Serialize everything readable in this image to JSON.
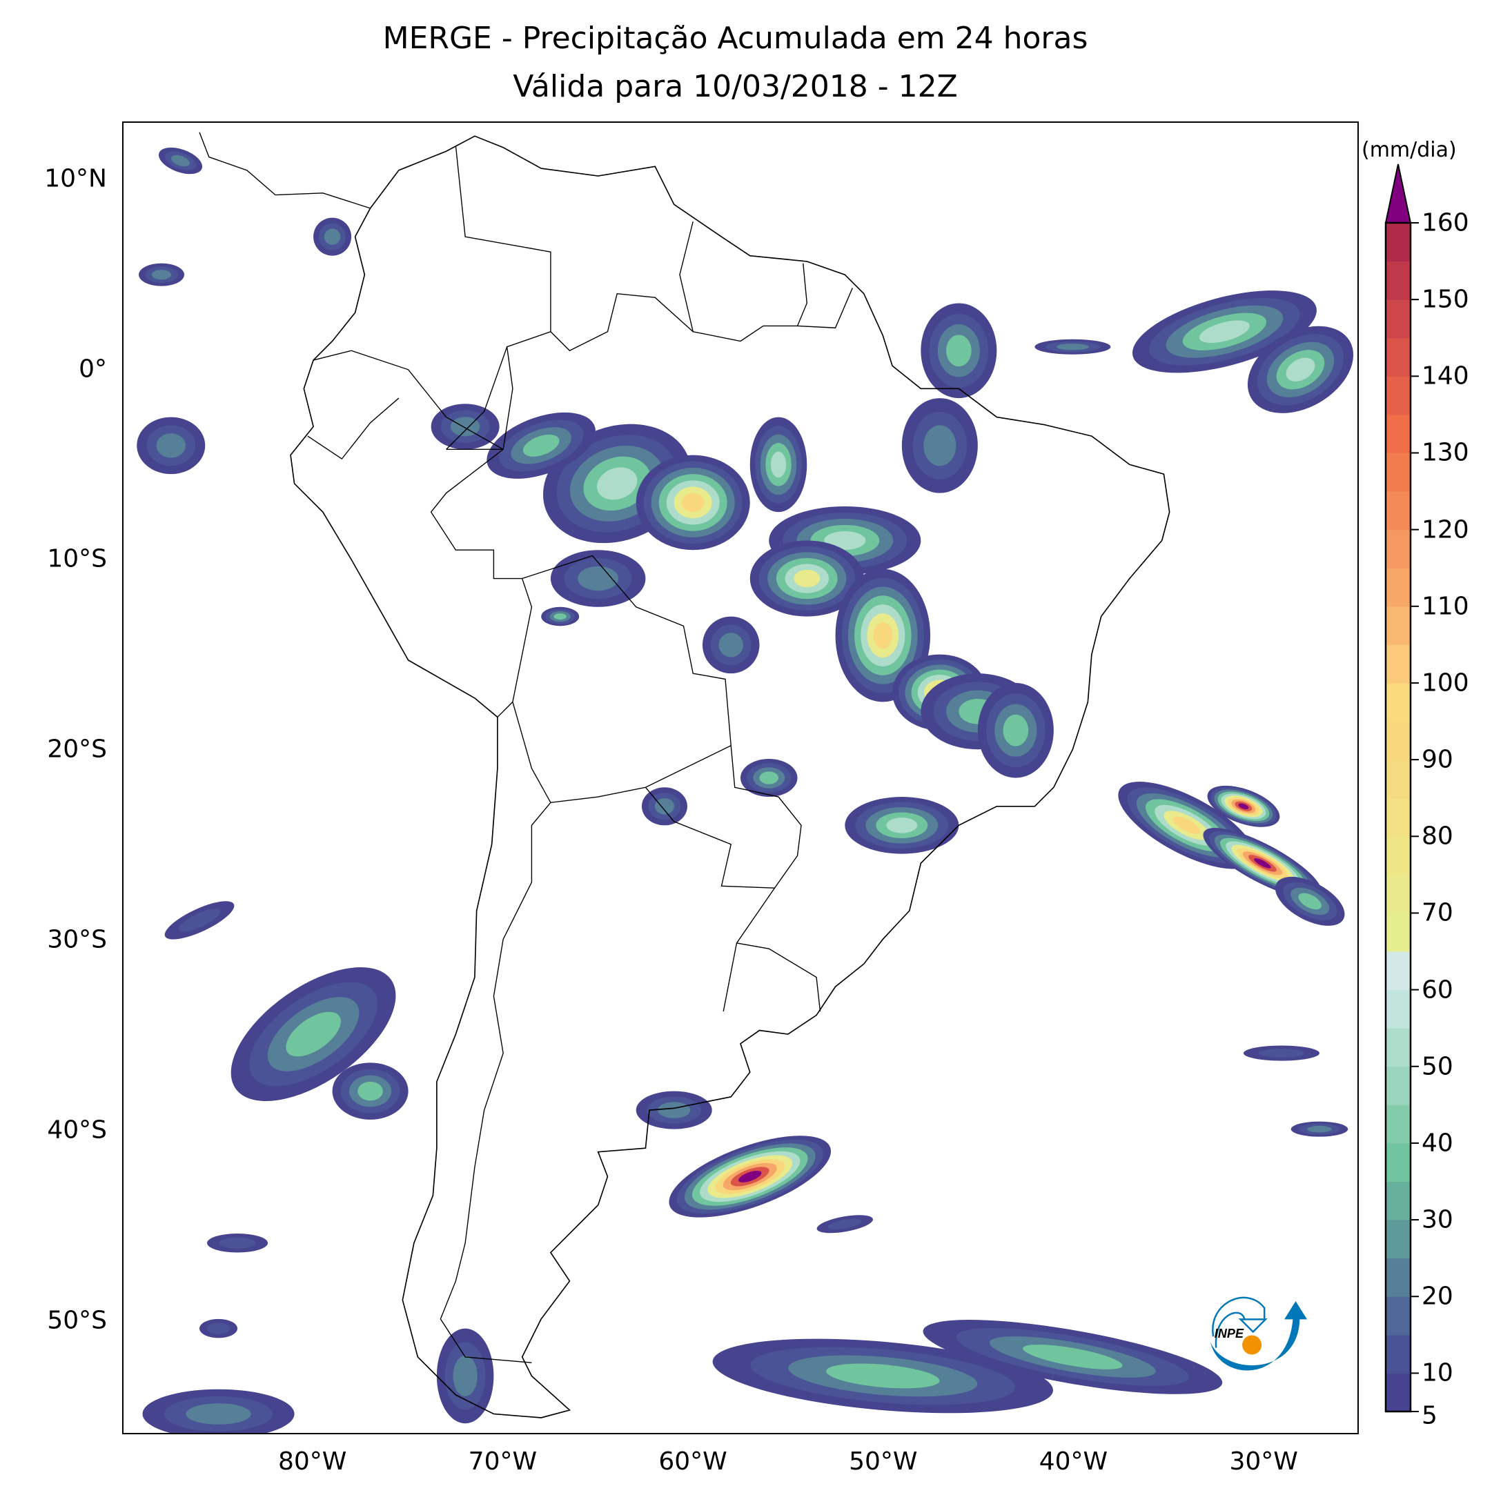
{
  "title": {
    "line1": "MERGE - Precipitação Acumulada em 24 horas",
    "line2": "Válida para 10/03/2018 - 12Z"
  },
  "map": {
    "extent_lon": [
      -90,
      -25
    ],
    "extent_lat": [
      -56,
      13
    ],
    "lat_ticks": [
      {
        "value": 10,
        "label": "10°N"
      },
      {
        "value": 0,
        "label": "0°"
      },
      {
        "value": -10,
        "label": "10°S"
      },
      {
        "value": -20,
        "label": "20°S"
      },
      {
        "value": -30,
        "label": "30°S"
      },
      {
        "value": -40,
        "label": "40°S"
      },
      {
        "value": -50,
        "label": "50°S"
      }
    ],
    "lon_ticks": [
      {
        "value": -80,
        "label": "80°W"
      },
      {
        "value": -70,
        "label": "70°W"
      },
      {
        "value": -60,
        "label": "60°W"
      },
      {
        "value": -50,
        "label": "50°W"
      },
      {
        "value": -40,
        "label": "40°W"
      },
      {
        "value": -30,
        "label": "30°W"
      }
    ]
  },
  "colorbar": {
    "units": "(mm/dia)",
    "min": 5,
    "max": 160,
    "step": 5,
    "tick_labels": [
      "5",
      "10",
      "20",
      "30",
      "40",
      "50",
      "60",
      "70",
      "80",
      "90",
      "100",
      "110",
      "120",
      "130",
      "140",
      "150",
      "160"
    ],
    "colors": [
      "#46438f",
      "#4a5396",
      "#4f6899",
      "#567f98",
      "#5e9a9a",
      "#66b09c",
      "#70c49e",
      "#84cba9",
      "#9bd4bc",
      "#addcca",
      "#c1e4dc",
      "#d3e9e8",
      "#e5ee8f",
      "#e8ea8c",
      "#eee685",
      "#f2e082",
      "#f6da80",
      "#f9d87d",
      "#fbd97d",
      "#fbc97a",
      "#f9b870",
      "#f7a868",
      "#f59960",
      "#f48a56",
      "#f27c4d",
      "#f06e48",
      "#e56248",
      "#da5449",
      "#cd474a",
      "#bf394a",
      "#b02a49"
    ],
    "over_color": "#800080"
  },
  "logo": {
    "text": "INPE",
    "blue": "#0077b6",
    "orange": "#f39200"
  }
}
